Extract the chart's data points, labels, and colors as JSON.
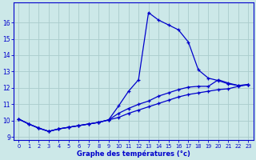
{
  "xlabel": "Graphe des températures (°c)",
  "bg_color": "#cce8e8",
  "grid_color": "#aacccc",
  "line_color": "#0000cc",
  "xlim": [
    -0.5,
    23.5
  ],
  "ylim": [
    8.8,
    17.2
  ],
  "yticks": [
    9,
    10,
    11,
    12,
    13,
    14,
    15,
    16
  ],
  "xticks": [
    0,
    1,
    2,
    3,
    4,
    5,
    6,
    7,
    8,
    9,
    10,
    11,
    12,
    13,
    14,
    15,
    16,
    17,
    18,
    19,
    20,
    21,
    22,
    23
  ],
  "line1_x": [
    0,
    1,
    2,
    3,
    4,
    5,
    6,
    7,
    8,
    9,
    10,
    11,
    12,
    13,
    14,
    15,
    16,
    17,
    18,
    19,
    20,
    21,
    22,
    23
  ],
  "line1_y": [
    10.1,
    9.8,
    9.55,
    9.35,
    9.5,
    9.6,
    9.7,
    9.8,
    9.9,
    10.05,
    10.9,
    11.8,
    12.5,
    16.6,
    16.15,
    15.85,
    15.55,
    14.8,
    13.1,
    12.6,
    12.45,
    12.25,
    12.15,
    12.2
  ],
  "line2_x": [
    0,
    1,
    2,
    3,
    4,
    5,
    6,
    7,
    8,
    9,
    10,
    11,
    12,
    13,
    14,
    15,
    16,
    17,
    18,
    19,
    20,
    21,
    22,
    23
  ],
  "line2_y": [
    10.1,
    9.8,
    9.55,
    9.35,
    9.5,
    9.6,
    9.7,
    9.8,
    9.9,
    10.05,
    10.45,
    10.75,
    11.0,
    11.2,
    11.5,
    11.7,
    11.9,
    12.05,
    12.1,
    12.1,
    12.5,
    12.3,
    12.15,
    12.2
  ],
  "line3_x": [
    0,
    1,
    2,
    3,
    4,
    5,
    6,
    7,
    8,
    9,
    10,
    11,
    12,
    13,
    14,
    15,
    16,
    17,
    18,
    19,
    20,
    21,
    22,
    23
  ],
  "line3_y": [
    10.1,
    9.8,
    9.55,
    9.35,
    9.5,
    9.6,
    9.7,
    9.8,
    9.9,
    10.05,
    10.2,
    10.45,
    10.65,
    10.85,
    11.05,
    11.25,
    11.45,
    11.6,
    11.7,
    11.8,
    11.9,
    11.95,
    12.1,
    12.2
  ]
}
